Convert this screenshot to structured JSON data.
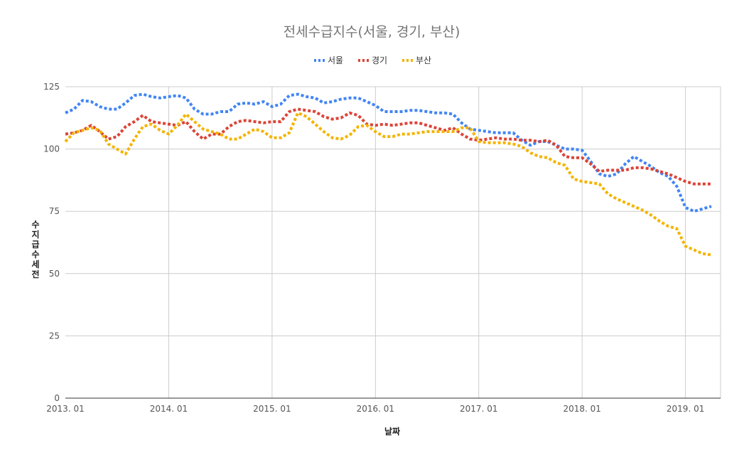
{
  "chart_data": {
    "type": "line",
    "title": "전세수급지수(서울, 경기, 부산)",
    "xlabel": "날짜",
    "ylabel": "수지급수세전",
    "ylim": [
      0,
      125
    ],
    "yticks": [
      0,
      25,
      50,
      75,
      100,
      125
    ],
    "xtick_labels": [
      "2013. 01",
      "2014. 01",
      "2015. 01",
      "2016. 01",
      "2017. 01",
      "2018. 01",
      "2019. 01"
    ],
    "x_start": "2013. 01",
    "months": 76,
    "legend_position": "top-center",
    "grid": true,
    "series": [
      {
        "name": "서울",
        "color": "#4285f4",
        "values": [
          114.5,
          116,
          119.5,
          119,
          117,
          116,
          116,
          118.5,
          121.5,
          122,
          121,
          120.5,
          121,
          121.5,
          120.5,
          116,
          114,
          114,
          115,
          115,
          118,
          118.5,
          118,
          119,
          117,
          118,
          121.5,
          122,
          121,
          120.5,
          118.5,
          119,
          120,
          120.5,
          120.5,
          119,
          117.5,
          115,
          115,
          115,
          115.5,
          115.5,
          115,
          114.5,
          114.5,
          114,
          110.5,
          108,
          107.5,
          107,
          106.5,
          106.5,
          106.5,
          103.5,
          101.5,
          103,
          103,
          101.5,
          100,
          100,
          99.5,
          95,
          90,
          89,
          90,
          94,
          97,
          95,
          93,
          90.5,
          89,
          85,
          76.5,
          75,
          76,
          77
        ]
      },
      {
        "name": "경기",
        "color": "#db4437",
        "values": [
          106,
          106.5,
          107.5,
          109.5,
          107,
          104,
          105,
          109,
          111,
          113.5,
          111,
          110.5,
          110,
          109.5,
          111,
          107,
          104,
          106,
          106,
          109,
          111,
          111.5,
          111,
          110.5,
          111,
          111,
          115,
          116,
          115.5,
          115,
          113,
          112,
          112.5,
          114.5,
          113.5,
          110,
          109.5,
          110,
          109.5,
          110,
          110.5,
          110.5,
          109.5,
          108.5,
          107.5,
          108.5,
          106,
          104,
          103.5,
          104,
          104.5,
          104,
          104,
          103.5,
          103.5,
          103,
          103.5,
          101.5,
          97,
          96.5,
          96.5,
          94,
          91,
          91.5,
          91.5,
          91.5,
          92.5,
          92.5,
          92,
          91,
          90,
          88.5,
          87,
          86,
          86,
          86
        ]
      },
      {
        "name": "부산",
        "color": "#f4b400",
        "values": [
          103,
          106.5,
          107.5,
          108.5,
          107.5,
          102,
          100,
          98,
          104,
          109,
          110,
          107.5,
          106,
          109.5,
          114,
          111,
          108,
          107,
          106,
          104,
          104,
          106,
          108,
          107,
          104.5,
          104.5,
          106.5,
          114.5,
          113,
          110,
          107,
          104.5,
          104,
          105.5,
          109,
          109.5,
          107,
          105,
          105,
          106,
          106,
          106.5,
          107,
          107,
          107,
          107,
          108.5,
          108.5,
          103,
          102.5,
          102.5,
          102.5,
          102,
          101,
          98.5,
          97,
          96.5,
          94.5,
          93.5,
          88,
          87,
          86.5,
          86,
          82,
          80,
          78.5,
          77,
          75.5,
          73.5,
          71,
          69,
          68,
          61,
          59.5,
          58,
          57.5
        ]
      }
    ]
  }
}
